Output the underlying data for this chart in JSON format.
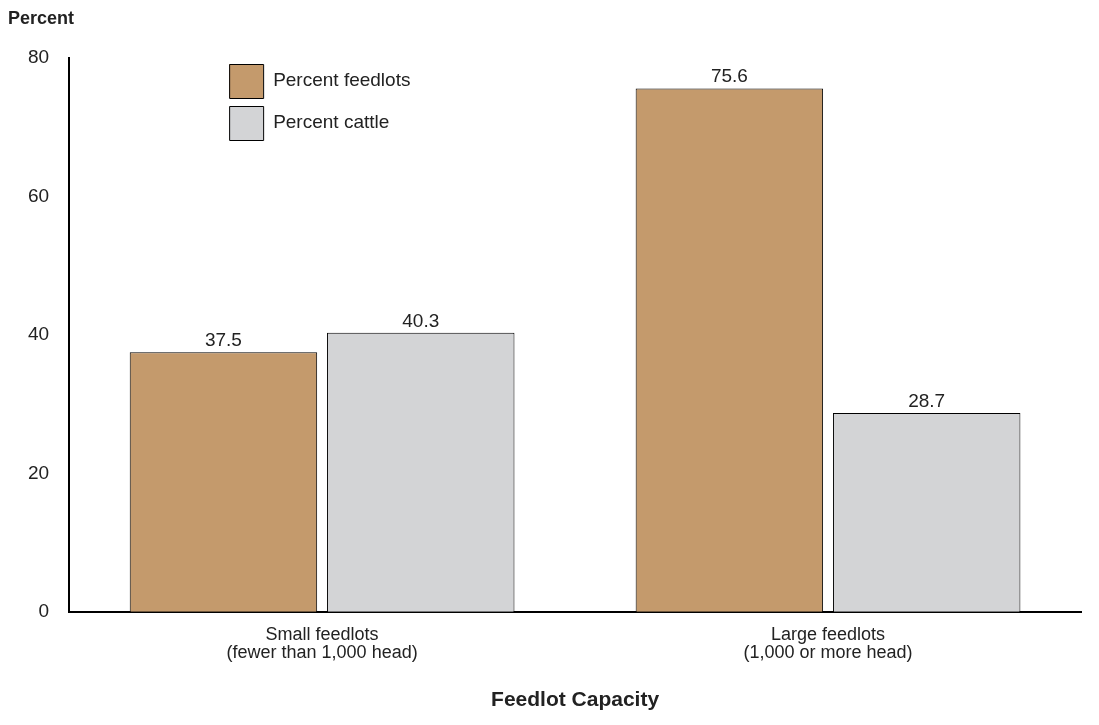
{
  "chart_data": {
    "type": "bar",
    "xlabel": "Feedlot Capacity",
    "ylabel": "Percent",
    "categories": [
      "Small feedlots\n(fewer than 1,000 head)",
      "Large feedlots\n(1,000 or more head)"
    ],
    "series": [
      {
        "name": "Percent feedlots",
        "color": "#c49a6c",
        "values": [
          37.5,
          75.6
        ]
      },
      {
        "name": "Percent cattle",
        "color": "#d3d4d6",
        "values": [
          40.3,
          28.7
        ]
      }
    ],
    "ylim": [
      0,
      80
    ],
    "yticks": [
      0,
      20,
      40,
      60,
      80
    ],
    "grid": false,
    "legend": "top left",
    "data_labels": true
  }
}
